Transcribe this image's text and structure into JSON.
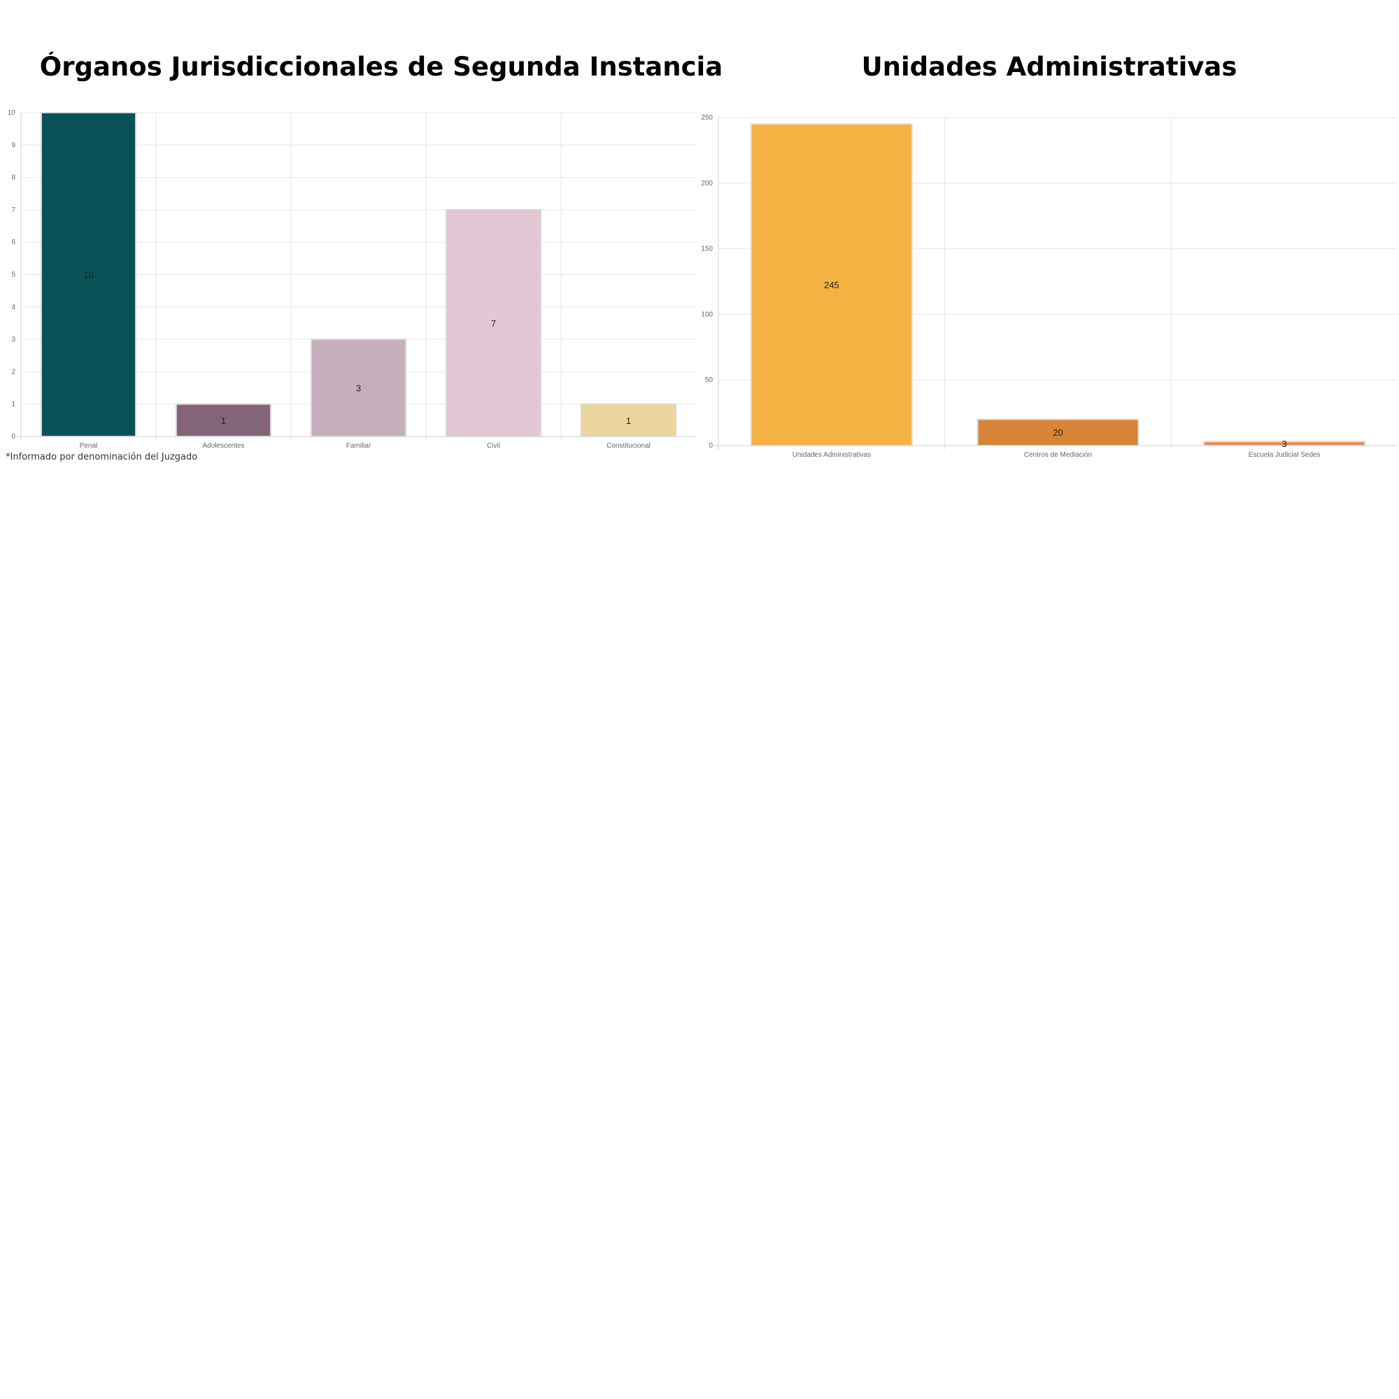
{
  "chart_data": [
    {
      "type": "bar",
      "title": "Órganos Jurisdiccionales de Segunda Instancia",
      "categories": [
        "Penal",
        "Adolescentes",
        "Familiar",
        "Civil",
        "Constitucional"
      ],
      "values": [
        10,
        1,
        3,
        7,
        1
      ],
      "data_labels": [
        "10",
        "1",
        "3",
        "7",
        "1"
      ],
      "colors": [
        "#0a5258",
        "#846478",
        "#c5afbc",
        "#e4c6d4",
        "#ebd69e"
      ],
      "ylim": [
        0,
        10
      ],
      "yticks": [
        0,
        1,
        2,
        3,
        4,
        5,
        6,
        7,
        8,
        9,
        10
      ],
      "grid": true,
      "footnote": "*Informado por denominación del Juzgado"
    },
    {
      "type": "bar",
      "title": "Unidades Administrativas",
      "categories": [
        "Unidades Administrativas",
        "Centros de Mediación",
        "Escuela Judicial Sedes"
      ],
      "values": [
        245,
        20,
        3
      ],
      "data_labels": [
        "245",
        "20",
        "3"
      ],
      "colors": [
        "#f4b243",
        "#d88336",
        "#eb8a4c"
      ],
      "ylim": [
        0,
        250
      ],
      "yticks": [
        0,
        50,
        100,
        150,
        200,
        250
      ],
      "grid": true
    }
  ]
}
